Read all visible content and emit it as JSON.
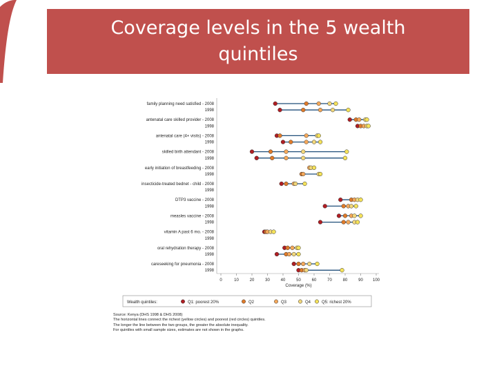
{
  "slide": {
    "title_line1": "Coverage levels in the 5 wealth",
    "title_line2": "quintiles"
  },
  "colors": {
    "banner": "#c0504d",
    "q1": "#b01e23",
    "q2": "#e07b2a",
    "q3": "#f4a85a",
    "q4": "#f2d77a",
    "q5": "#f5e25a",
    "connector": "#1f4e79"
  },
  "chart_data": {
    "type": "scatter",
    "orientation": "horizontal-dot-plot",
    "xlabel": "Coverage (%)",
    "xlim": [
      0,
      100
    ],
    "xticks": [
      0,
      10,
      20,
      30,
      40,
      50,
      60,
      70,
      80,
      90,
      100
    ],
    "legend_title": "Wealth quintiles:",
    "legend_placement": "bottom",
    "series_names": [
      "Q1: poorest 20%",
      "Q2",
      "Q3",
      "Q4",
      "Q5: richest 20%"
    ],
    "indicators": [
      {
        "label": "family planning need satisfied",
        "rows": [
          {
            "year": "2008",
            "values": [
              35,
              55,
              63,
              70,
              74
            ]
          },
          {
            "year": "1998",
            "values": [
              38,
              53,
              64,
              72,
              82
            ]
          }
        ]
      },
      {
        "label": "antenatal care skilled provider",
        "rows": [
          {
            "year": "2008",
            "values": [
              83,
              87,
              89,
              93,
              94
            ]
          },
          {
            "year": "1998",
            "values": [
              88,
              90,
              92,
              94,
              95
            ]
          }
        ]
      },
      {
        "label": "antenatal care (4+ visits)",
        "rows": [
          {
            "year": "2008",
            "values": [
              36,
              38,
              55,
              62,
              63
            ]
          },
          {
            "year": "1998",
            "values": [
              40,
              45,
              55,
              60,
              64
            ]
          }
        ]
      },
      {
        "label": "skilled birth attendant",
        "rows": [
          {
            "year": "2008",
            "values": [
              20,
              32,
              42,
              53,
              81
            ]
          },
          {
            "year": "1998",
            "values": [
              23,
              33,
              42,
              53,
              80
            ]
          }
        ]
      },
      {
        "label": "early initiation of breastfeeding",
        "rows": [
          {
            "year": "2008",
            "values": [
              null,
              null,
              57,
              58,
              60
            ]
          },
          {
            "year": "1998",
            "values": [
              null,
              52,
              53,
              63,
              64
            ]
          }
        ]
      },
      {
        "label": "insecticide-treated bednet - child",
        "rows": [
          {
            "year": "2008",
            "values": [
              39,
              42,
              47,
              48,
              54
            ]
          },
          {
            "year": "1998",
            "values": [
              null,
              null,
              null,
              null,
              null
            ]
          }
        ]
      },
      {
        "label": "DTP3 vaccine",
        "rows": [
          {
            "year": "2008",
            "values": [
              77,
              84,
              86,
              88,
              90
            ]
          },
          {
            "year": "1998",
            "values": [
              67,
              79,
              82,
              84,
              87
            ]
          }
        ]
      },
      {
        "label": "measles vaccine",
        "rows": [
          {
            "year": "2008",
            "values": [
              76,
              80,
              84,
              86,
              90
            ]
          },
          {
            "year": "1998",
            "values": [
              64,
              79,
              82,
              86,
              88
            ]
          }
        ]
      },
      {
        "label": "vitamin A past 6 mo.",
        "rows": [
          {
            "year": "2008",
            "values": [
              28,
              29,
              30,
              32,
              34
            ]
          },
          {
            "year": "1998",
            "values": [
              null,
              null,
              null,
              null,
              null
            ]
          }
        ]
      },
      {
        "label": "oral rehydration therapy",
        "rows": [
          {
            "year": "2008",
            "values": [
              41,
              43,
              46,
              49,
              50
            ]
          },
          {
            "year": "1998",
            "values": [
              36,
              42,
              44,
              47,
              50
            ]
          }
        ]
      },
      {
        "label": "careseeking for pneumonia",
        "rows": [
          {
            "year": "2008",
            "values": [
              47,
              50,
              53,
              57,
              62
            ]
          },
          {
            "year": "1998",
            "values": [
              50,
              52,
              54,
              55,
              78
            ]
          }
        ]
      }
    ]
  },
  "notes": {
    "source": "Source: Kenya (DHS 1998 & DHS 2008)",
    "line1": "The horizontal lines connect the richest (yellow circles) and poorest (red circles) quintiles.",
    "line2": "The longer the line between the two groups, the greater the absolute inequality.",
    "line3": "For quintiles with small sample sizes, estimates are not shown in the graphs."
  }
}
